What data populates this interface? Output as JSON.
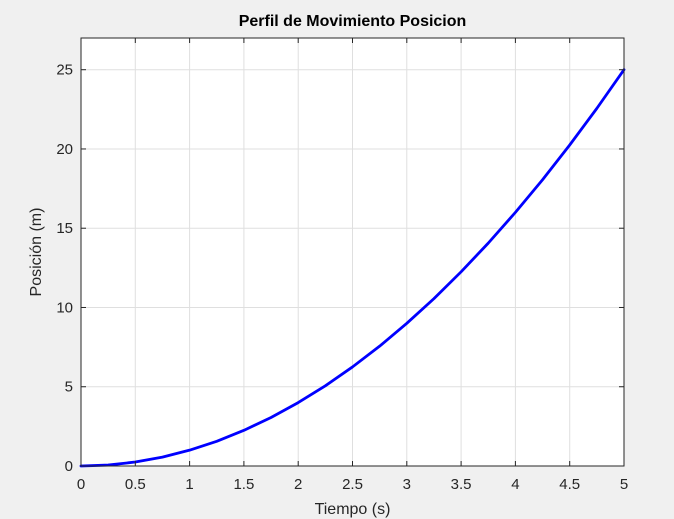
{
  "chart_data": {
    "type": "line",
    "title": "Perfil de Movimiento Posicion",
    "xlabel": "Tiempo (s)",
    "ylabel": "Posición (m)",
    "xlim": [
      0,
      5
    ],
    "ylim": [
      0,
      27
    ],
    "xticks": [
      0,
      0.5,
      1,
      1.5,
      2,
      2.5,
      3,
      3.5,
      4,
      4.5,
      5
    ],
    "xtick_labels": [
      "0",
      "0.5",
      "1",
      "1.5",
      "2",
      "2.5",
      "3",
      "3.5",
      "4",
      "4.5",
      "5"
    ],
    "yticks": [
      0,
      5,
      10,
      15,
      20,
      25
    ],
    "ytick_labels": [
      "0",
      "5",
      "10",
      "15",
      "20",
      "25"
    ],
    "grid": true,
    "series": [
      {
        "color": "#0000ff",
        "x": [
          0,
          0.25,
          0.5,
          0.75,
          1,
          1.25,
          1.5,
          1.75,
          2,
          2.25,
          2.5,
          2.75,
          3,
          3.25,
          3.5,
          3.75,
          4,
          4.25,
          4.5,
          4.75,
          5
        ],
        "y": [
          0,
          0.06,
          0.25,
          0.56,
          1,
          1.56,
          2.25,
          3.06,
          4,
          5.06,
          6.25,
          7.56,
          9,
          10.56,
          12.25,
          14.06,
          16,
          18.06,
          20.25,
          22.56,
          25
        ]
      }
    ]
  },
  "colors": {
    "figure_background": "#f0f0f0",
    "axes_background": "#ffffff",
    "grid": "#dfdfdf",
    "axis": "#262626",
    "line": "#0000ff"
  }
}
